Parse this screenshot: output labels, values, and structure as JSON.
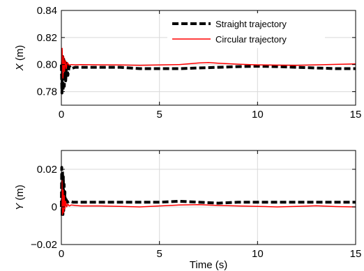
{
  "chart_data": [
    {
      "type": "line",
      "ylabel_var": "X",
      "ylabel_unit": " (m)",
      "xlabel": "",
      "xlim": [
        0,
        15
      ],
      "ylim": [
        0.77,
        0.84
      ],
      "xticks": [
        0,
        5,
        10,
        15
      ],
      "xtick_labels": [
        "0",
        "5",
        "10",
        "15"
      ],
      "yticks": [
        0.78,
        0.8,
        0.82,
        0.84
      ],
      "ytick_labels": [
        "0.78",
        "0.80",
        "0.82",
        "0.84"
      ],
      "grid": true,
      "legend_position": "top-right",
      "series": [
        {
          "name": "Straight trajectory",
          "color": "#000000",
          "style": "dashed-thick",
          "x": [
            0,
            0.03,
            0.06,
            0.09,
            0.12,
            0.15,
            0.18,
            0.22,
            0.27,
            0.33,
            0.4,
            0.5,
            0.7,
            1,
            2,
            3,
            4,
            5,
            6,
            7,
            8,
            9,
            10,
            11,
            12,
            13,
            14,
            15
          ],
          "y": [
            0.8,
            0.779,
            0.806,
            0.781,
            0.804,
            0.784,
            0.802,
            0.788,
            0.801,
            0.792,
            0.799,
            0.797,
            0.798,
            0.798,
            0.798,
            0.798,
            0.797,
            0.797,
            0.797,
            0.7975,
            0.798,
            0.7985,
            0.7988,
            0.7985,
            0.798,
            0.7975,
            0.797,
            0.797
          ]
        },
        {
          "name": "Circular trajectory",
          "color": "#ff0000",
          "style": "solid",
          "x": [
            0,
            0.04,
            0.08,
            0.12,
            0.16,
            0.2,
            0.25,
            0.3,
            0.4,
            0.5,
            0.7,
            1,
            2,
            3,
            4,
            5,
            6,
            7,
            7.5,
            8,
            9,
            10,
            11,
            12,
            13,
            14,
            15
          ],
          "y": [
            0.8,
            0.812,
            0.79,
            0.806,
            0.795,
            0.803,
            0.797,
            0.8015,
            0.7995,
            0.8,
            0.7998,
            0.8,
            0.7998,
            0.7997,
            0.7995,
            0.7997,
            0.8,
            0.8012,
            0.8015,
            0.801,
            0.8003,
            0.7998,
            0.7996,
            0.7995,
            0.7998,
            0.8002,
            0.8005
          ]
        }
      ]
    },
    {
      "type": "line",
      "ylabel_var": "Y",
      "ylabel_unit": " (m)",
      "xlabel": "Time (s)",
      "xlim": [
        0,
        15
      ],
      "ylim": [
        -0.02,
        0.03
      ],
      "xticks": [
        0,
        5,
        10,
        15
      ],
      "xtick_labels": [
        "0",
        "5",
        "10",
        "15"
      ],
      "yticks": [
        -0.02,
        0,
        0.02
      ],
      "ytick_labels": [
        "−0.02",
        "0",
        "0.02"
      ],
      "grid": true,
      "series": [
        {
          "name": "Straight trajectory",
          "color": "#000000",
          "style": "dashed-thick",
          "x": [
            0,
            0.02,
            0.04,
            0.06,
            0.08,
            0.1,
            0.12,
            0.14,
            0.16,
            0.18,
            0.2,
            0.24,
            0.3,
            0.4,
            0.6,
            1,
            2,
            3,
            4,
            5,
            6,
            7,
            8,
            9,
            10,
            11,
            12,
            13,
            14,
            15
          ],
          "y": [
            0.0,
            0.021,
            -0.005,
            0.019,
            -0.004,
            0.016,
            -0.002,
            0.012,
            0.0,
            0.008,
            0.002,
            0.004,
            0.0025,
            0.003,
            0.0025,
            0.0025,
            0.0025,
            0.0025,
            0.0025,
            0.0025,
            0.003,
            0.0025,
            0.002,
            0.0025,
            0.0025,
            0.0025,
            0.0025,
            0.0025,
            0.0025,
            0.0025
          ]
        },
        {
          "name": "Circular trajectory",
          "color": "#ff0000",
          "style": "solid",
          "x": [
            0,
            0.03,
            0.06,
            0.09,
            0.12,
            0.15,
            0.18,
            0.22,
            0.27,
            0.33,
            0.4,
            0.5,
            0.7,
            1,
            2,
            3,
            4,
            5,
            6,
            7,
            8,
            9,
            10,
            11,
            12,
            13,
            14,
            15
          ],
          "y": [
            0.0,
            0.014,
            -0.004,
            0.009,
            -0.003,
            0.006,
            -0.001,
            0.003,
            0.0,
            0.0015,
            0.0005,
            0.001,
            0.0008,
            0.0005,
            0.0005,
            0.0003,
            0.0,
            0.0005,
            0.001,
            0.0012,
            0.0008,
            0.0005,
            0.0003,
            0.0,
            0.0003,
            0.0006,
            0.0002,
            0.0
          ]
        }
      ]
    }
  ]
}
